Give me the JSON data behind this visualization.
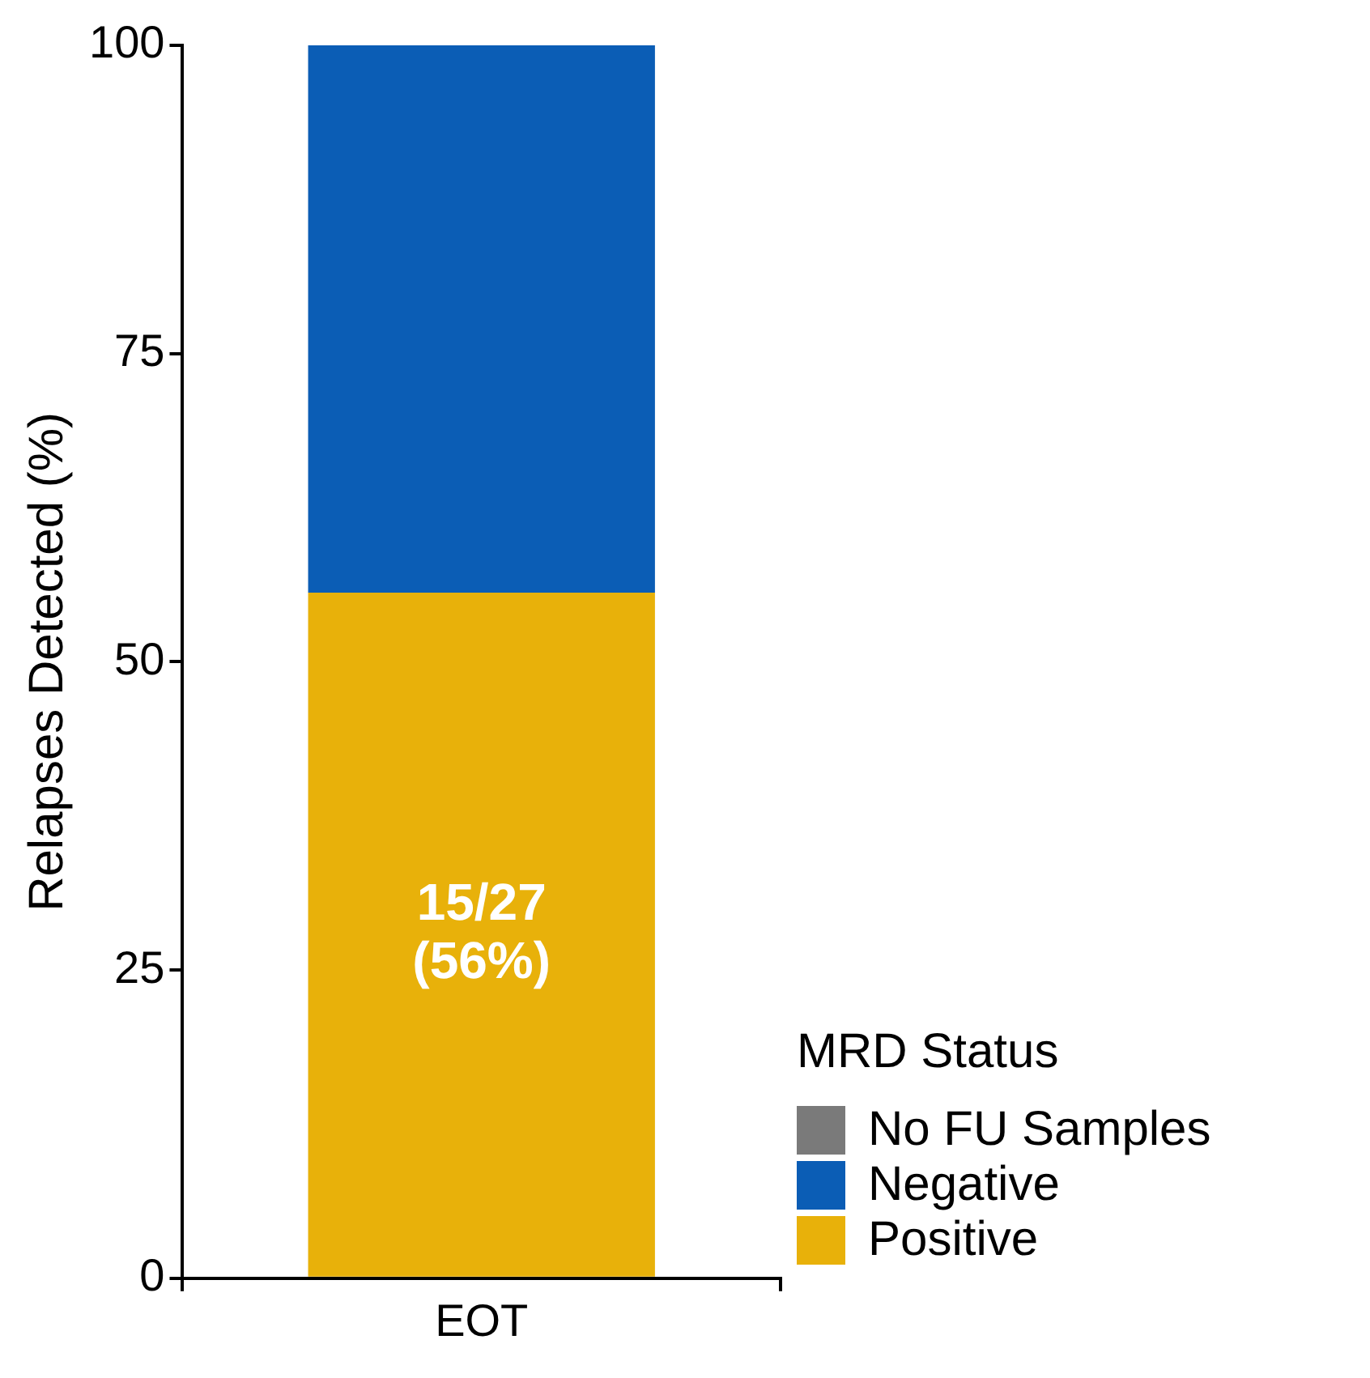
{
  "chart_data": {
    "type": "bar",
    "ylabel": "Relapses Detected (%)",
    "legend_title": "MRD Status",
    "categories": [
      "EOT"
    ],
    "stacked": true,
    "ylim": [
      0,
      100
    ],
    "yticks": [
      0,
      25,
      50,
      75,
      100
    ],
    "grid": false,
    "legend": "right",
    "series": [
      {
        "name": "Positive",
        "color": "#e8b10a",
        "values": [
          55.6
        ],
        "value_labels": [
          "15/27 (56%)"
        ]
      },
      {
        "name": "Negative",
        "color": "#0b5db5",
        "values": [
          44.4
        ]
      },
      {
        "name": "No FU Samples",
        "color": "#7a7a7a",
        "values": [
          0
        ]
      }
    ]
  }
}
